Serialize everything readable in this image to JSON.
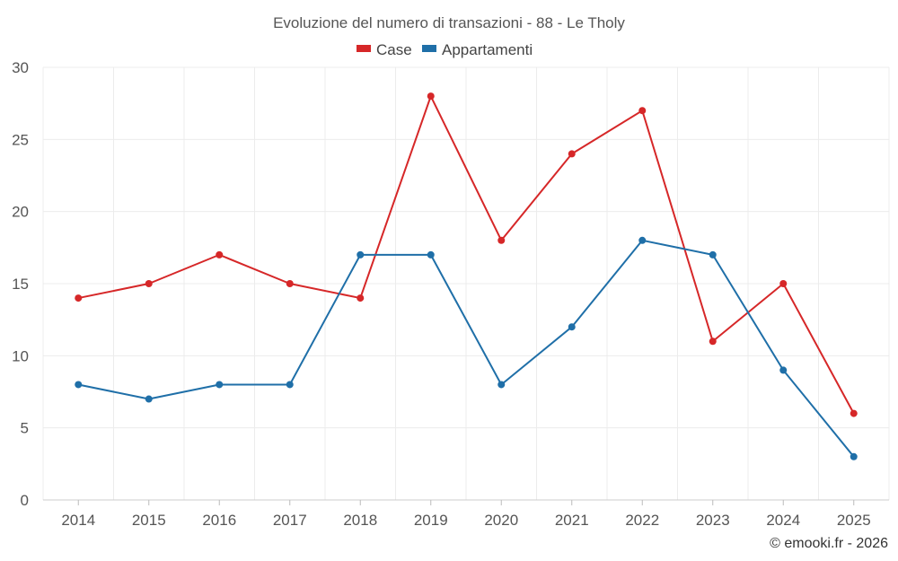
{
  "chart_data": {
    "type": "line",
    "title": "Evoluzione del numero di transazioni - 88 - Le Tholy",
    "xlabel": "",
    "ylabel": "",
    "categories": [
      "2014",
      "2015",
      "2016",
      "2017",
      "2018",
      "2019",
      "2020",
      "2021",
      "2022",
      "2023",
      "2024",
      "2025"
    ],
    "ylim": [
      0,
      30
    ],
    "yticks": [
      "0",
      "5",
      "10",
      "15",
      "20",
      "25",
      "30"
    ],
    "grid": true,
    "legend_position": "top-center",
    "series": [
      {
        "name": "Case",
        "color": "#d62728",
        "values": [
          14,
          15,
          17,
          15,
          14,
          28,
          18,
          24,
          27,
          11,
          15,
          6
        ]
      },
      {
        "name": "Appartamenti",
        "color": "#1f6fa8",
        "values": [
          8,
          7,
          8,
          8,
          17,
          17,
          8,
          12,
          18,
          17,
          9,
          3
        ]
      }
    ]
  },
  "footer": {
    "credit": "© emooki.fr - 2026"
  }
}
